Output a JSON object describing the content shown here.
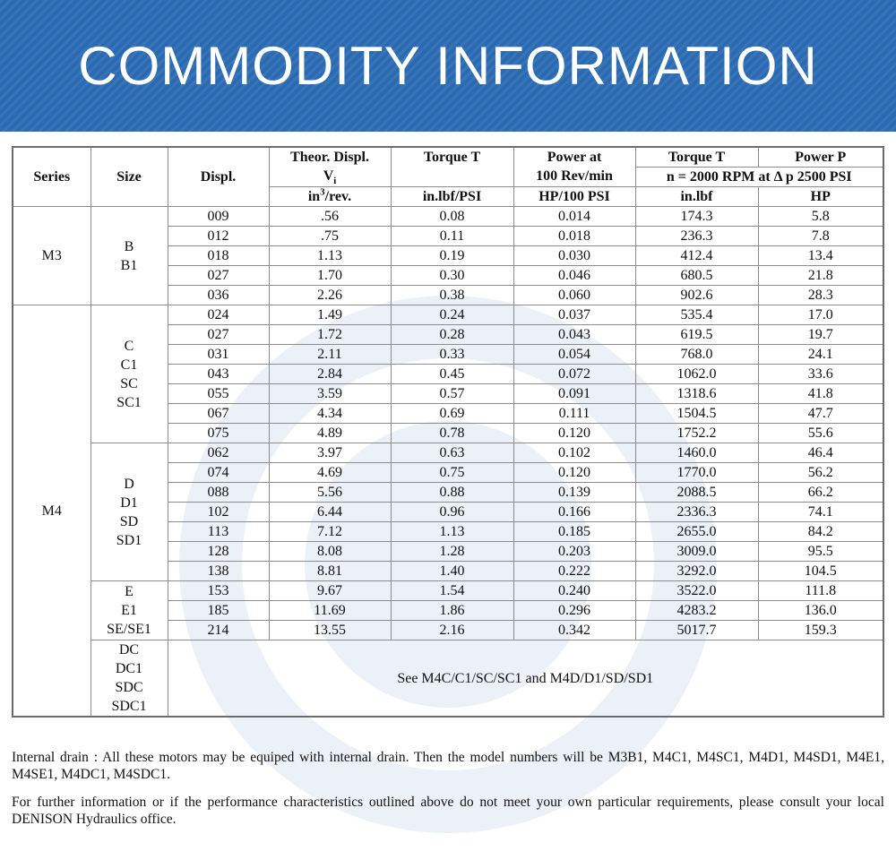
{
  "banner": {
    "title": "COMMODITY INFORMATION"
  },
  "header": {
    "series": "Series",
    "size": "Size",
    "displ": "Displ.",
    "theor_line1": "Theor. Displ.",
    "theor_symbol": "V",
    "theor_sub": "i",
    "theor_unit_base": "in",
    "theor_unit_sup": "3",
    "theor_unit_tail": "/rev.",
    "torque": "Torque T",
    "torque_unit": "in.lbf/PSI",
    "power_line1": "Power at",
    "power_line2": "100 Rev/min",
    "power_unit": "HP/100 PSI",
    "torque2": "Torque T",
    "power2": "Power P",
    "condition": "n = 2000 RPM at Δ p 2500 PSI",
    "torque2_unit": "in.lbf",
    "power2_unit": "HP"
  },
  "groups": [
    {
      "series": "M3",
      "sizes": [
        {
          "label": [
            "B",
            "B1"
          ],
          "rows": [
            [
              "009",
              ".56",
              "0.08",
              "0.014",
              "174.3",
              "5.8"
            ],
            [
              "012",
              ".75",
              "0.11",
              "0.018",
              "236.3",
              "7.8"
            ],
            [
              "018",
              "1.13",
              "0.19",
              "0.030",
              "412.4",
              "13.4"
            ],
            [
              "027",
              "1.70",
              "0.30",
              "0.046",
              "680.5",
              "21.8"
            ],
            [
              "036",
              "2.26",
              "0.38",
              "0.060",
              "902.6",
              "28.3"
            ]
          ]
        }
      ]
    },
    {
      "series": "M4",
      "sizes": [
        {
          "label": [
            "C",
            "C1",
            "SC",
            "SC1"
          ],
          "rows": [
            [
              "024",
              "1.49",
              "0.24",
              "0.037",
              "535.4",
              "17.0"
            ],
            [
              "027",
              "1.72",
              "0.28",
              "0.043",
              "619.5",
              "19.7"
            ],
            [
              "031",
              "2.11",
              "0.33",
              "0.054",
              "768.0",
              "24.1"
            ],
            [
              "043",
              "2.84",
              "0.45",
              "0.072",
              "1062.0",
              "33.6"
            ],
            [
              "055",
              "3.59",
              "0.57",
              "0.091",
              "1318.6",
              "41.8"
            ],
            [
              "067",
              "4.34",
              "0.69",
              "0.111",
              "1504.5",
              "47.7"
            ],
            [
              "075",
              "4.89",
              "0.78",
              "0.120",
              "1752.2",
              "55.6"
            ]
          ]
        },
        {
          "label": [
            "D",
            "D1",
            "SD",
            "SD1"
          ],
          "rows": [
            [
              "062",
              "3.97",
              "0.63",
              "0.102",
              "1460.0",
              "46.4"
            ],
            [
              "074",
              "4.69",
              "0.75",
              "0.120",
              "1770.0",
              "56.2"
            ],
            [
              "088",
              "5.56",
              "0.88",
              "0.139",
              "2088.5",
              "66.2"
            ],
            [
              "102",
              "6.44",
              "0.96",
              "0.166",
              "2336.3",
              "74.1"
            ],
            [
              "113",
              "7.12",
              "1.13",
              "0.185",
              "2655.0",
              "84.2"
            ],
            [
              "128",
              "8.08",
              "1.28",
              "0.203",
              "3009.0",
              "95.5"
            ],
            [
              "138",
              "8.81",
              "1.40",
              "0.222",
              "3292.0",
              "104.5"
            ]
          ]
        },
        {
          "label": [
            "E",
            "E1",
            "SE/SE1"
          ],
          "rows": [
            [
              "153",
              "9.67",
              "1.54",
              "0.240",
              "3522.0",
              "111.8"
            ],
            [
              "185",
              "11.69",
              "1.86",
              "0.296",
              "4283.2",
              "136.0"
            ],
            [
              "214",
              "13.55",
              "2.16",
              "0.342",
              "5017.7",
              "159.3"
            ]
          ]
        },
        {
          "label": [
            "DC",
            "DC1",
            "SDC",
            "SDC1"
          ],
          "note": "See M4C/C1/SC/SC1 and M4D/D1/SD/SD1"
        }
      ]
    }
  ],
  "notes": {
    "internal_drain": "Internal drain : All these motors may be equiped with internal drain. Then the model numbers will be M3B1, M4C1, M4SC1, M4D1, M4SD1, M4E1, M4SE1, M4DC1, M4SDC1.",
    "further_info": "For further information or if the performance characteristics outlined above do not meet your own particular requirements, please consult your local DENISON Hydraulics office."
  }
}
